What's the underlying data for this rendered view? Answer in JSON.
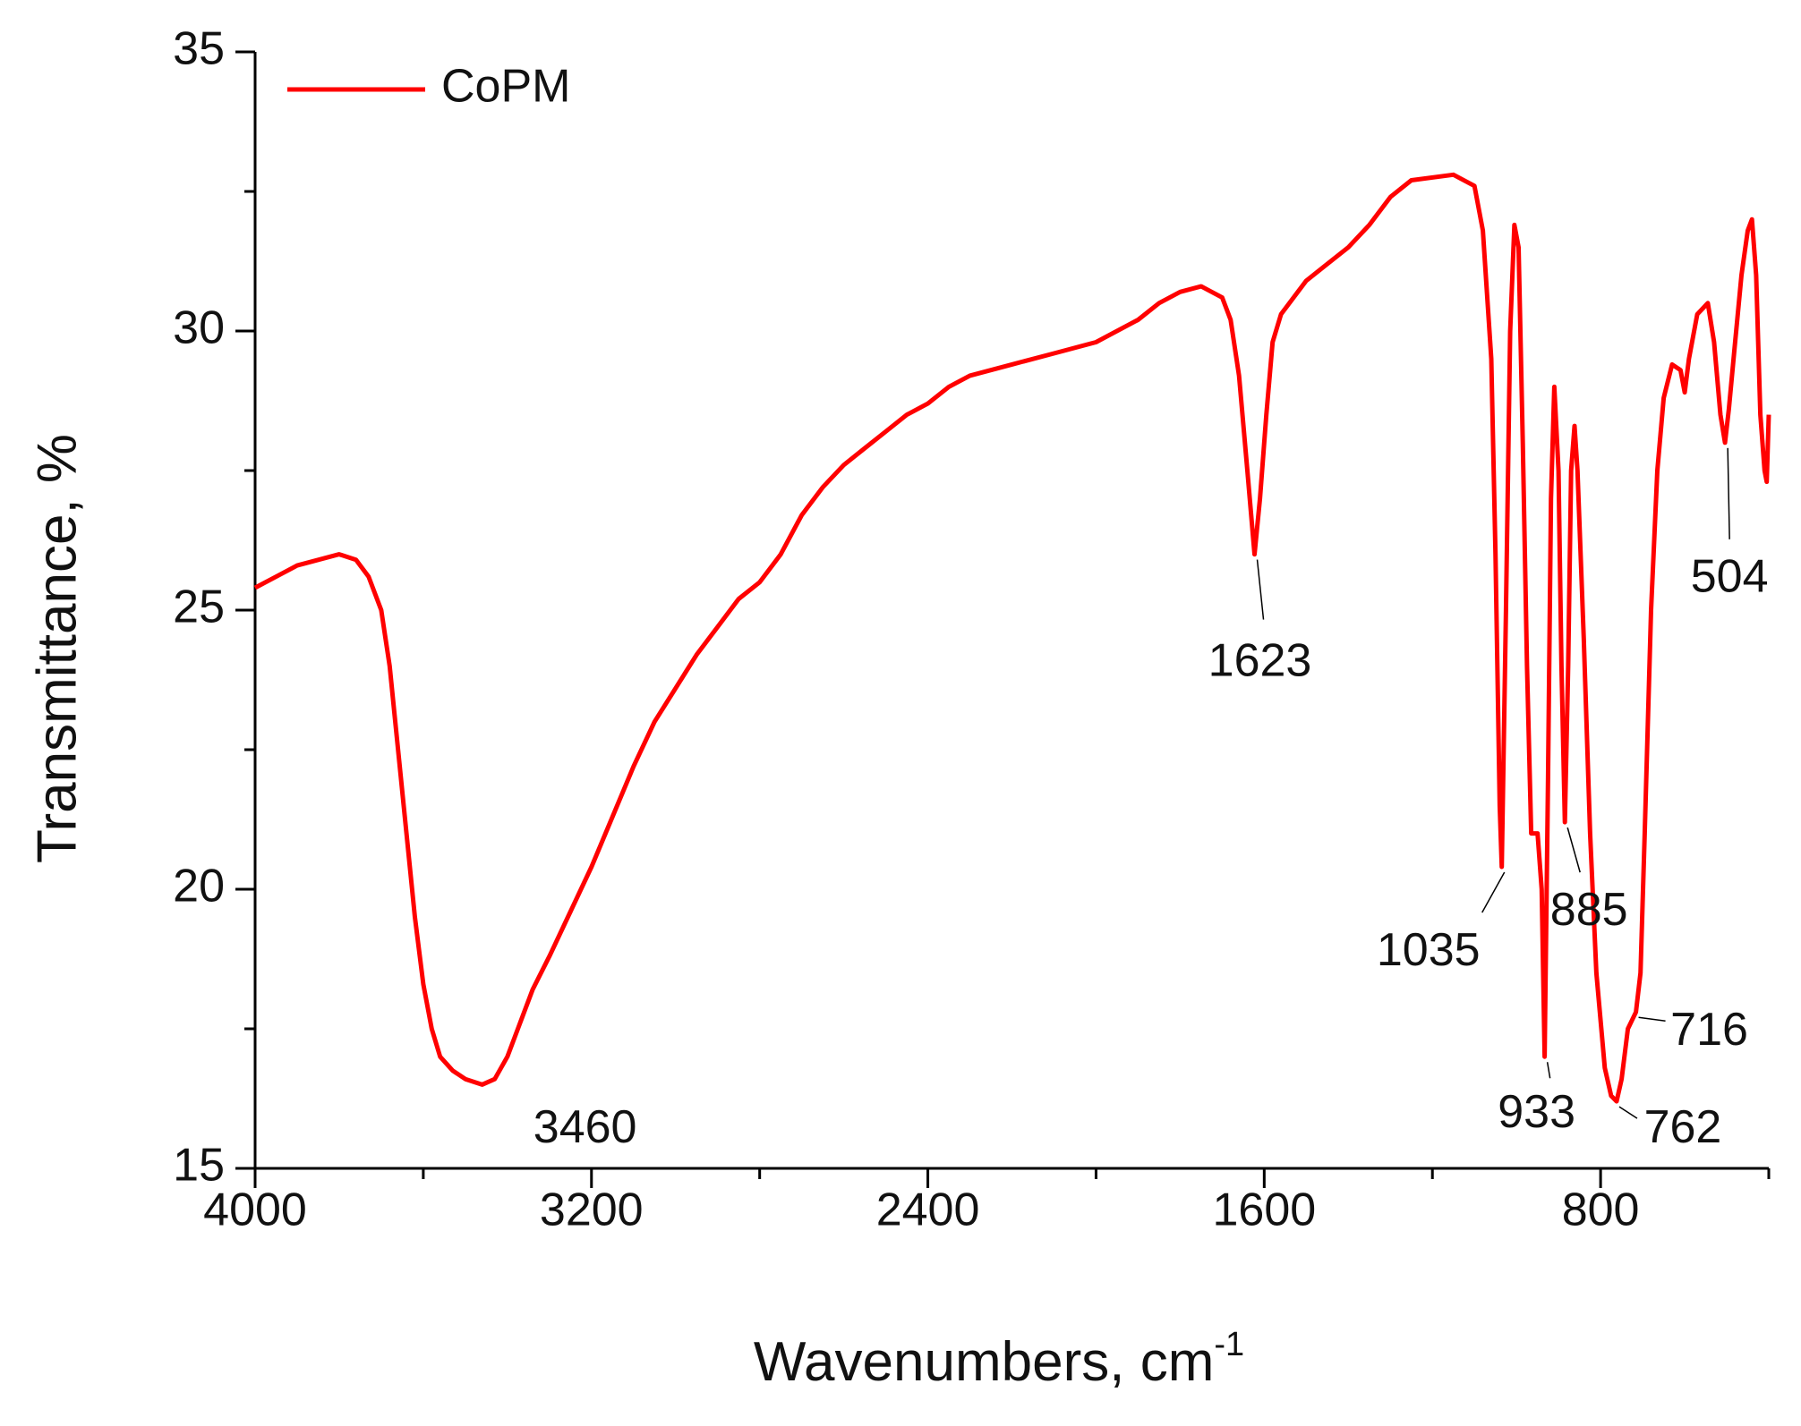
{
  "chart_data": {
    "type": "line",
    "x_label": "Wavenumbers, cm",
    "x_label_sup": "-1",
    "y_label": "Transmittance, %",
    "xlim": [
      4000,
      400
    ],
    "ylim": [
      15,
      35
    ],
    "xticks": [
      4000,
      3200,
      2400,
      1600,
      800
    ],
    "xminorticks": [
      3600,
      2800,
      2000,
      1200,
      400
    ],
    "yticks": [
      15,
      20,
      25,
      30,
      35
    ],
    "yminorticks": [
      17.5,
      22.5,
      27.5,
      32.5
    ],
    "legend": "upper left",
    "x": [
      4000,
      3950,
      3900,
      3850,
      3800,
      3760,
      3730,
      3700,
      3680,
      3660,
      3640,
      3620,
      3600,
      3580,
      3560,
      3530,
      3500,
      3460,
      3430,
      3400,
      3370,
      3340,
      3300,
      3250,
      3200,
      3150,
      3100,
      3050,
      3000,
      2950,
      2900,
      2850,
      2800,
      2750,
      2700,
      2650,
      2600,
      2550,
      2500,
      2450,
      2400,
      2350,
      2300,
      2200,
      2100,
      2000,
      1900,
      1850,
      1800,
      1750,
      1700,
      1680,
      1660,
      1640,
      1623,
      1610,
      1595,
      1580,
      1560,
      1500,
      1450,
      1400,
      1350,
      1300,
      1250,
      1150,
      1100,
      1080,
      1060,
      1050,
      1040,
      1035,
      1025,
      1015,
      1005,
      995,
      985,
      975,
      965,
      950,
      940,
      933,
      925,
      918,
      910,
      900,
      893,
      885,
      877,
      870,
      862,
      855,
      840,
      825,
      810,
      790,
      775,
      762,
      750,
      735,
      716,
      705,
      695,
      680,
      665,
      650,
      630,
      610,
      600,
      590,
      570,
      545,
      530,
      515,
      504,
      495,
      480,
      465,
      450,
      440,
      430,
      420,
      410,
      405,
      400
    ],
    "series": [
      {
        "name": "CoPM",
        "color": "#ff0000",
        "values": [
          25.4,
          25.6,
          25.8,
          25.9,
          26.0,
          25.9,
          25.6,
          25.0,
          24.0,
          22.5,
          21.0,
          19.5,
          18.3,
          17.5,
          17.0,
          16.75,
          16.6,
          16.5,
          16.6,
          17.0,
          17.6,
          18.2,
          18.8,
          19.6,
          20.4,
          21.3,
          22.2,
          23.0,
          23.6,
          24.2,
          24.7,
          25.2,
          25.5,
          26.0,
          26.7,
          27.2,
          27.6,
          27.9,
          28.2,
          28.5,
          28.7,
          29.0,
          29.2,
          29.4,
          29.6,
          29.8,
          30.2,
          30.5,
          30.7,
          30.8,
          30.6,
          30.2,
          29.2,
          27.5,
          26.0,
          27.0,
          28.5,
          29.8,
          30.3,
          30.9,
          31.2,
          31.5,
          31.9,
          32.4,
          32.7,
          32.8,
          32.6,
          31.8,
          29.5,
          26.0,
          21.5,
          20.4,
          25.0,
          30.0,
          31.9,
          31.5,
          28.0,
          24.0,
          21.0,
          21.0,
          20.0,
          17.0,
          22.0,
          27.0,
          29.0,
          27.5,
          24.0,
          21.2,
          24.0,
          27.5,
          28.3,
          27.5,
          24.5,
          21.0,
          18.5,
          16.8,
          16.3,
          16.2,
          16.6,
          17.5,
          17.8,
          18.5,
          21.0,
          25.0,
          27.5,
          28.8,
          29.4,
          29.3,
          28.9,
          29.5,
          30.3,
          30.5,
          29.8,
          28.5,
          28.0,
          28.6,
          29.8,
          31.0,
          31.8,
          32.0,
          31.0,
          28.5,
          27.5,
          27.3,
          28.5
        ]
      }
    ],
    "annotations": [
      {
        "text": "3460",
        "x": 3460,
        "y": 16.5
      },
      {
        "text": "1623",
        "x": 1623,
        "y": 26.0
      },
      {
        "text": "1035",
        "x": 1035,
        "y": 20.4
      },
      {
        "text": "885",
        "x": 885,
        "y": 21.2
      },
      {
        "text": "933",
        "x": 933,
        "y": 17.0
      },
      {
        "text": "762",
        "x": 762,
        "y": 16.2
      },
      {
        "text": "716",
        "x": 716,
        "y": 17.8
      },
      {
        "text": "504",
        "x": 504,
        "y": 28.0
      }
    ]
  }
}
